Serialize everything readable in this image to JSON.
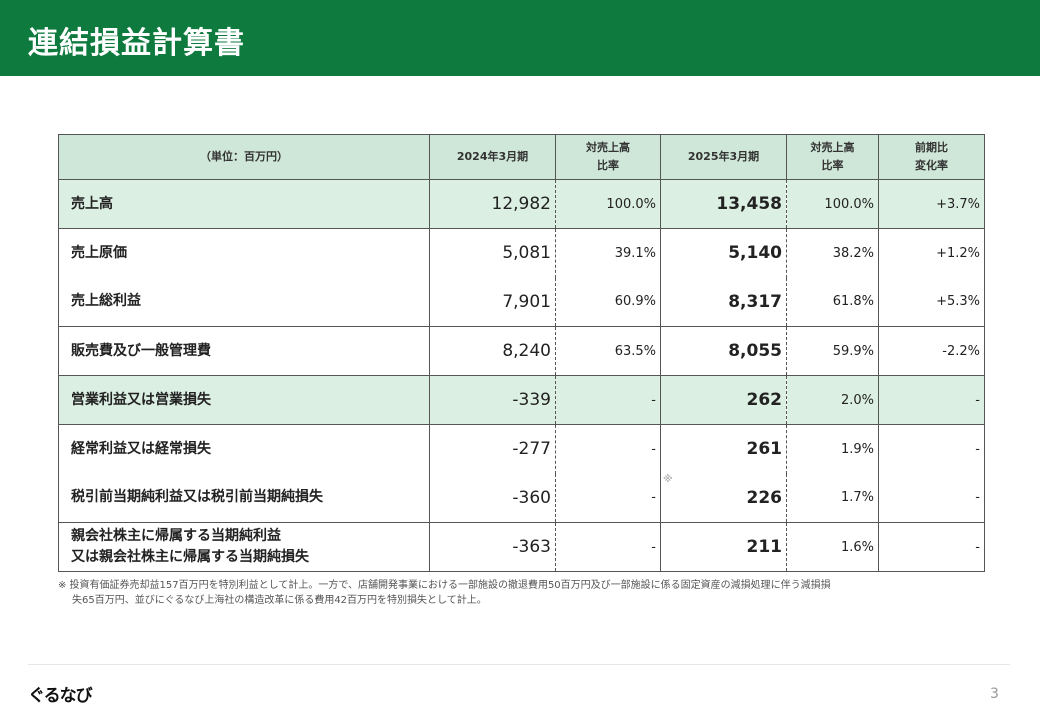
{
  "title": "連結損益計算書",
  "table": {
    "headers": {
      "unit": "（単位：百万円）",
      "fy2024": "2024年3月期",
      "ratio_line1": "対売上高",
      "ratio_line2": "比率",
      "fy2025": "2025年3月期",
      "ratio2_line1": "対売上高",
      "ratio2_line2": "比率",
      "change_line1": "前期比",
      "change_line2": "変化率"
    },
    "rows": [
      {
        "label": "売上高",
        "fy2024": "12,982",
        "ratio2024": "100.0%",
        "fy2025": "13,458",
        "ratio2025": "100.0%",
        "change": "+3.7%"
      },
      {
        "label": "売上原価",
        "fy2024": "5,081",
        "ratio2024": "39.1%",
        "fy2025": "5,140",
        "ratio2025": "38.2%",
        "change": "+1.2%"
      },
      {
        "label": "売上総利益",
        "fy2024": "7,901",
        "ratio2024": "60.9%",
        "fy2025": "8,317",
        "ratio2025": "61.8%",
        "change": "+5.3%"
      },
      {
        "label": "販売費及び一般管理費",
        "fy2024": "8,240",
        "ratio2024": "63.5%",
        "fy2025": "8,055",
        "ratio2025": "59.9%",
        "change": "-2.2%"
      },
      {
        "label": "営業利益又は営業損失",
        "fy2024": "-339",
        "ratio2024": "-",
        "fy2025": "262",
        "ratio2025": "2.0%",
        "change": "-"
      },
      {
        "label": "経常利益又は経常損失",
        "fy2024": "-277",
        "ratio2024": "-",
        "fy2025": "261",
        "ratio2025": "1.9%",
        "change": "-"
      },
      {
        "label": "税引前当期純利益又は税引前当期純損失",
        "fy2024": "-360",
        "ratio2024": "-",
        "fy2025": "226",
        "ratio2025": "1.7%",
        "change": "-",
        "mark": "※"
      },
      {
        "label_line1": "親会社株主に帰属する当期純利益",
        "label_line2": "又は親会社株主に帰属する当期純損失",
        "fy2024": "-363",
        "ratio2024": "-",
        "fy2025": "211",
        "ratio2025": "1.6%",
        "change": "-"
      }
    ]
  },
  "footnote": {
    "line1": "※ 投資有価証券売却益157百万円を特別利益として計上。一方で、店舗開発事業における一部施設の撤退費用50百万円及び一部施設に係る固定資産の減損処理に伴う減損損",
    "line2": "失65百万円、並びにぐるなび上海社の構造改革に係る費用42百万円を特別損失として計上。"
  },
  "footer": {
    "logo": "ぐるなび",
    "page_number": "3"
  }
}
